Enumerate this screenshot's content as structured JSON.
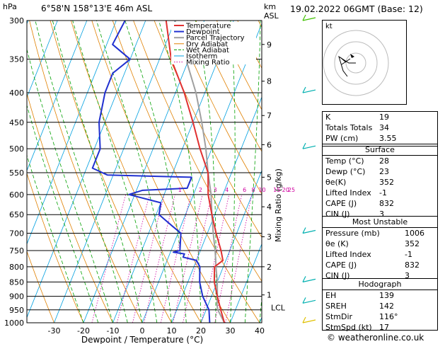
{
  "header": {
    "hpa_label": "hPa",
    "location": "6°58'N 158°13'E 46m ASL",
    "km_label": "km",
    "asl_label": "ASL",
    "datetime": "19.02.2022 06GMT (Base: 12)"
  },
  "colors": {
    "temperature": "#e03030",
    "dewpoint": "#2030d0",
    "parcel": "#a0a0a0",
    "dry_adiabat": "#e08000",
    "wet_adiabat": "#00a000",
    "isotherm": "#00a0e0",
    "mixing_ratio": "#d000a0"
  },
  "chart_data": {
    "type": "line",
    "xlabel": "Dewpoint / Temperature (°C)",
    "ylabel_right": "Mixing Ratio (g/kg)",
    "x_ticks": [
      "-30",
      "-20",
      "-10",
      "0",
      "10",
      "20",
      "30",
      "40"
    ],
    "pressure_levels": [
      "300",
      "350",
      "400",
      "450",
      "500",
      "550",
      "600",
      "650",
      "700",
      "750",
      "800",
      "850",
      "900",
      "950",
      "1000"
    ],
    "km_ticks": [
      {
        "label": "9",
        "p": 330
      },
      {
        "label": "8",
        "p": 382
      },
      {
        "label": "7",
        "p": 438
      },
      {
        "label": "6",
        "p": 492
      },
      {
        "label": "5",
        "p": 560
      },
      {
        "label": "4",
        "p": 630
      },
      {
        "label": "3",
        "p": 710
      },
      {
        "label": "2",
        "p": 800
      },
      {
        "label": "1",
        "p": 895
      }
    ],
    "lcl": {
      "label": "LCL",
      "p": 930
    },
    "mixing_ratio_labels": [
      {
        "label": "1",
        "t": -5
      },
      {
        "label": "2",
        "t": 2
      },
      {
        "label": "3",
        "t": 7
      },
      {
        "label": "4",
        "t": 11
      },
      {
        "label": "6",
        "t": 17
      },
      {
        "label": "8",
        "t": 20
      },
      {
        "label": "10",
        "t": 23
      },
      {
        "label": "15",
        "t": 28
      },
      {
        "label": "20",
        "t": 31
      },
      {
        "label": "25",
        "t": 33
      }
    ],
    "legend": [
      "Temperature",
      "Dewpoint",
      "Parcel Trajectory",
      "Dry Adiabat",
      "Wet Adiabat",
      "Isotherm",
      "Mixing Ratio"
    ],
    "series": [
      {
        "name": "Temperature",
        "points": [
          [
            1000,
            28
          ],
          [
            950,
            25
          ],
          [
            900,
            22
          ],
          [
            850,
            19
          ],
          [
            800,
            17
          ],
          [
            780,
            19
          ],
          [
            750,
            17
          ],
          [
            700,
            13
          ],
          [
            650,
            9
          ],
          [
            600,
            5
          ],
          [
            550,
            2
          ],
          [
            500,
            -4
          ],
          [
            450,
            -10
          ],
          [
            400,
            -17
          ],
          [
            350,
            -26
          ],
          [
            300,
            -33
          ]
        ]
      },
      {
        "name": "Dewpoint",
        "points": [
          [
            1000,
            23
          ],
          [
            950,
            21
          ],
          [
            900,
            17
          ],
          [
            850,
            14
          ],
          [
            800,
            12
          ],
          [
            780,
            10
          ],
          [
            770,
            5
          ],
          [
            760,
            5
          ],
          [
            755,
            1
          ],
          [
            750,
            3
          ],
          [
            700,
            1
          ],
          [
            680,
            -3
          ],
          [
            650,
            -9
          ],
          [
            620,
            -10
          ],
          [
            600,
            -22
          ],
          [
            590,
            -18
          ],
          [
            585,
            -3
          ],
          [
            560,
            -3
          ],
          [
            555,
            -32
          ],
          [
            540,
            -38
          ],
          [
            500,
            -38
          ],
          [
            450,
            -42
          ],
          [
            400,
            -44
          ],
          [
            370,
            -44
          ],
          [
            350,
            -40
          ],
          [
            330,
            -48
          ],
          [
            300,
            -47
          ]
        ]
      },
      {
        "name": "Parcel Trajectory",
        "points": [
          [
            1000,
            28
          ],
          [
            950,
            24
          ],
          [
            930,
            23
          ],
          [
            900,
            22
          ],
          [
            850,
            20
          ],
          [
            800,
            17.5
          ],
          [
            750,
            15
          ],
          [
            700,
            12
          ],
          [
            650,
            9
          ],
          [
            600,
            6
          ],
          [
            550,
            2
          ],
          [
            500,
            -2
          ],
          [
            450,
            -7
          ],
          [
            400,
            -13
          ],
          [
            350,
            -21
          ],
          [
            300,
            -30
          ]
        ]
      }
    ],
    "wind_barbs": [
      {
        "p": 300,
        "color": "#40c000"
      },
      {
        "p": 400,
        "color": "#00b0b0"
      },
      {
        "p": 500,
        "color": "#00b0b0"
      },
      {
        "p": 700,
        "color": "#00b0b0"
      },
      {
        "p": 850,
        "color": "#00b0b0"
      },
      {
        "p": 925,
        "color": "#00b0b0"
      },
      {
        "p": 1000,
        "color": "#e0c000"
      }
    ]
  },
  "hodograph": {
    "label": "kt"
  },
  "indices": {
    "k_label": "K",
    "k": "19",
    "tt_label": "Totals Totals",
    "tt": "34",
    "pw_label": "PW (cm)",
    "pw": "3.55"
  },
  "surface": {
    "title": "Surface",
    "temp_label": "Temp (°C)",
    "temp": "28",
    "dewp_label": "Dewp (°C)",
    "dewp": "23",
    "theta_label": "θe(K)",
    "theta": "352",
    "li_label": "Lifted Index",
    "li": "-1",
    "cape_label": "CAPE (J)",
    "cape": "832",
    "cin_label": "CIN (J)",
    "cin": "3"
  },
  "most_unstable": {
    "title": "Most Unstable",
    "pressure_label": "Pressure (mb)",
    "pressure": "1006",
    "theta_label": "θe (K)",
    "theta": "352",
    "li_label": "Lifted Index",
    "li": "-1",
    "cape_label": "CAPE (J)",
    "cape": "832",
    "cin_label": "CIN (J)",
    "cin": "3"
  },
  "hodo_stats": {
    "title": "Hodograph",
    "eh_label": "EH",
    "eh": "139",
    "srh_label": "SREH",
    "srh": "142",
    "dir_label": "StmDir",
    "dir": "116°",
    "spd_label": "StmSpd (kt)",
    "spd": "17"
  },
  "credit": "© weatheronline.co.uk"
}
